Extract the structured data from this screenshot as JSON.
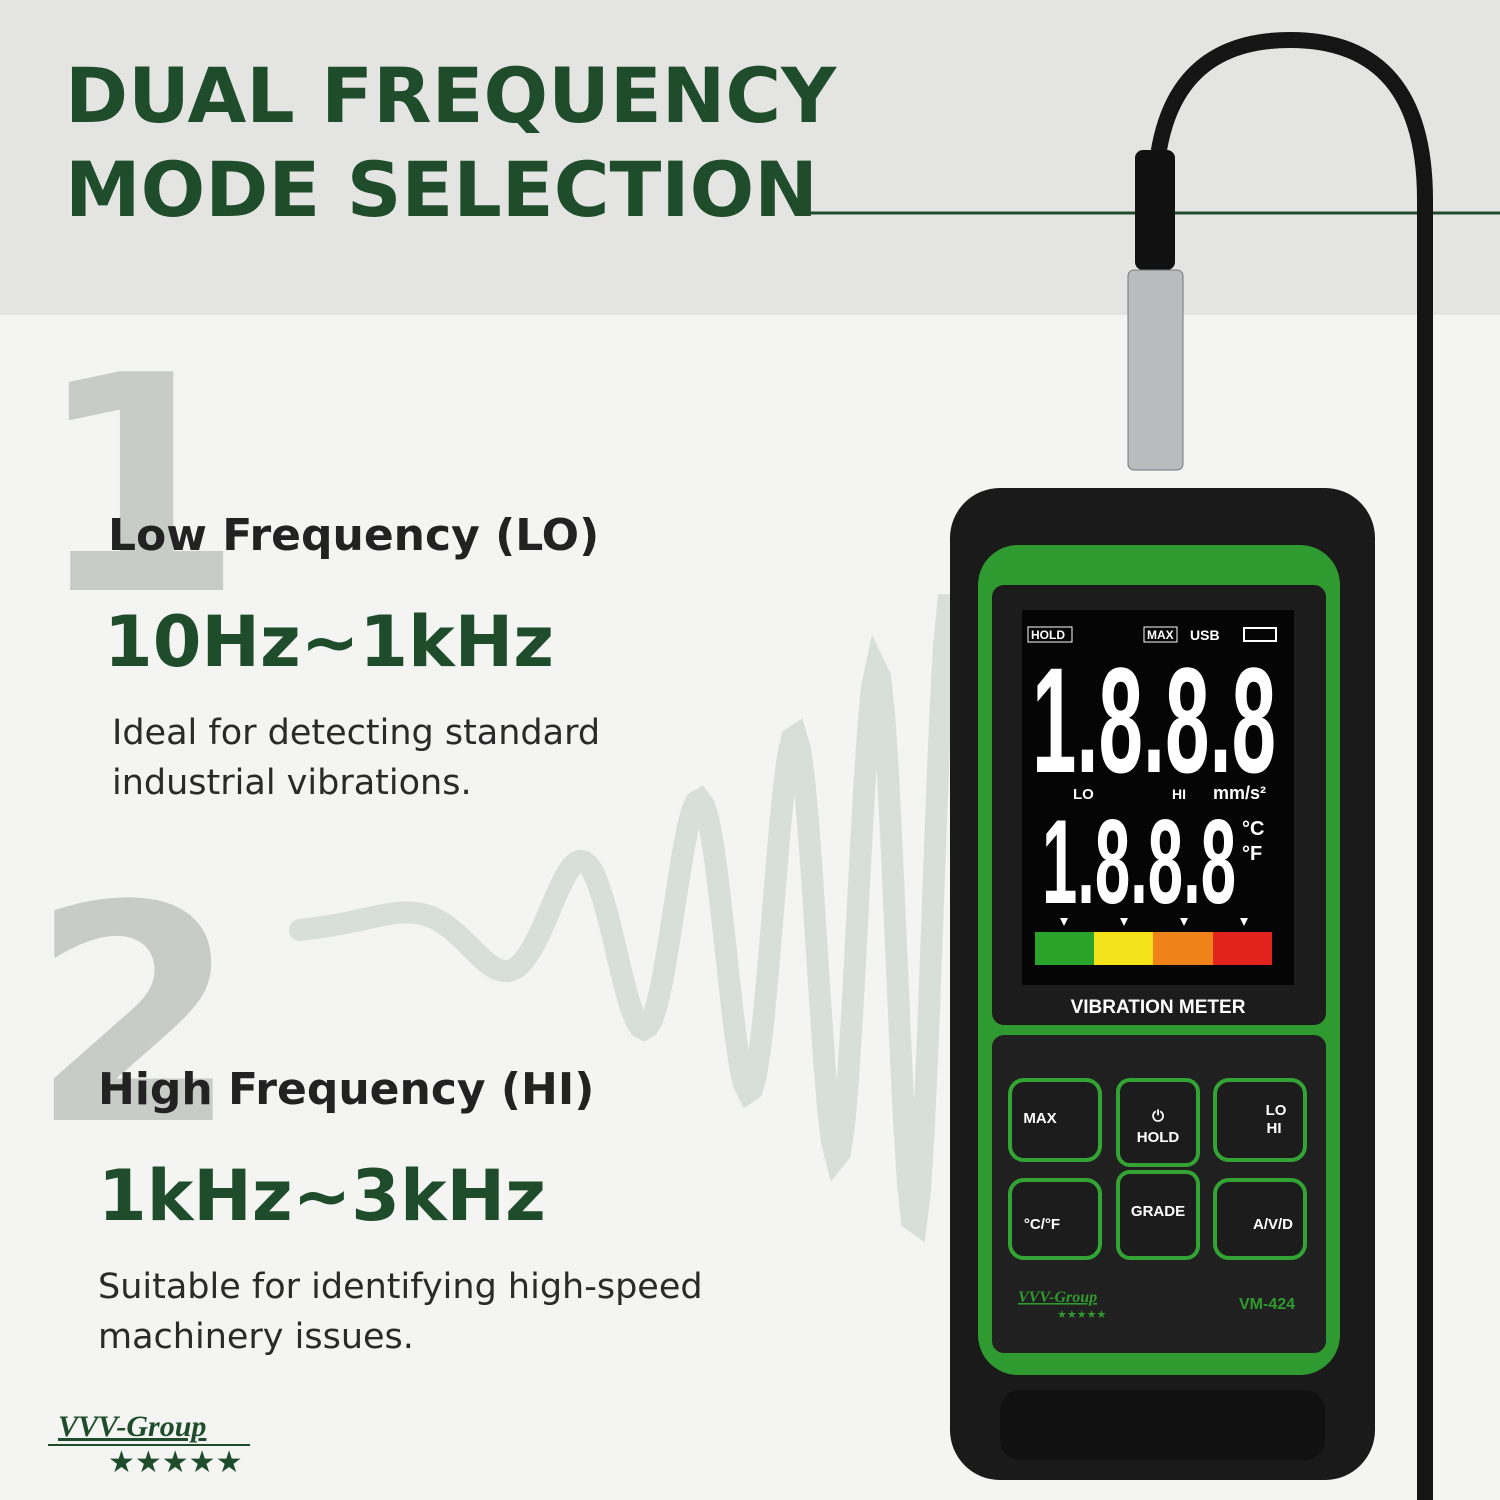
{
  "header": {
    "title_lines": [
      "DUAL FREQUENCY",
      "MODE SELECTION"
    ]
  },
  "modes": [
    {
      "number": "1",
      "name": "Low Frequency (LO)",
      "range": "10Hz~1kHz",
      "description": [
        "Ideal for detecting standard",
        "industrial vibrations."
      ]
    },
    {
      "number": "2",
      "name": "High Frequency (HI)",
      "range": "1kHz~3kHz",
      "description": [
        "Suitable for identifying high-speed",
        "machinery issues."
      ]
    }
  ],
  "brand": {
    "name": "VVV-Group",
    "stars": "★★★★★"
  },
  "device": {
    "indicators": [
      "HOLD",
      "MAX",
      "USB"
    ],
    "main_reading": "1.8.8.8",
    "secondary_reading": "1.8.8.8",
    "mode_labels": [
      "LO",
      "HI"
    ],
    "unit": "mm/s²",
    "temp_units": [
      "°C",
      "°F"
    ],
    "label": "VIBRATION METER",
    "buttons": [
      "MAX",
      "HOLD",
      "LO",
      "HI",
      "°C/°F",
      "GRADE",
      "A/V/D"
    ],
    "brand": "VVV-Group",
    "stars": "★★★★★",
    "model": "VM-424"
  }
}
